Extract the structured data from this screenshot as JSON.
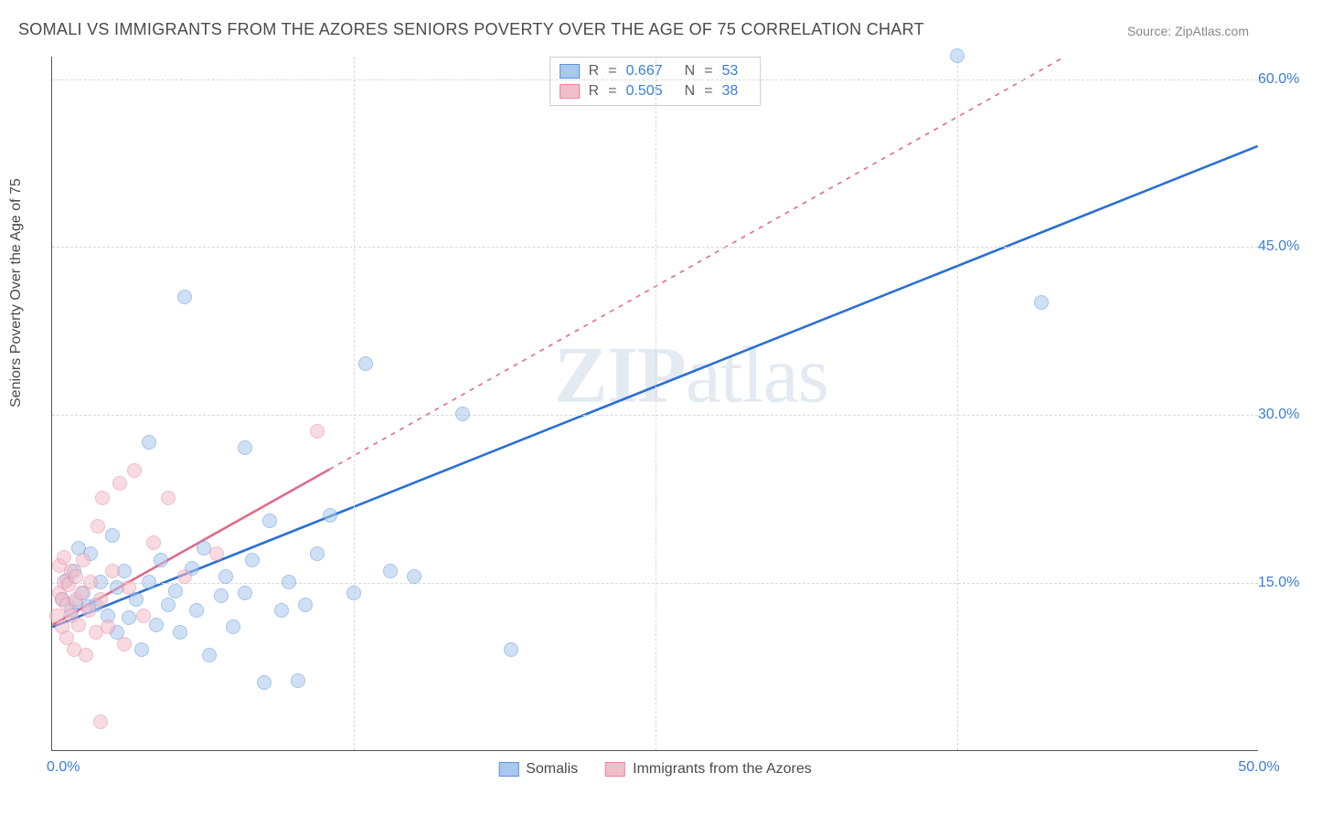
{
  "title": "SOMALI VS IMMIGRANTS FROM THE AZORES SENIORS POVERTY OVER THE AGE OF 75 CORRELATION CHART",
  "source": "Source: ZipAtlas.com",
  "watermark_left": "ZIP",
  "watermark_right": "atlas",
  "chart": {
    "type": "scatter",
    "y_axis_title": "Seniors Poverty Over the Age of 75",
    "xlim": [
      0,
      50
    ],
    "ylim": [
      0,
      62
    ],
    "x_ticks": [
      0,
      50
    ],
    "x_tick_labels": [
      "0.0%",
      "50.0%"
    ],
    "x_grid": [
      12.5,
      25,
      37.5
    ],
    "y_ticks": [
      15,
      30,
      45,
      60
    ],
    "y_tick_labels": [
      "15.0%",
      "30.0%",
      "45.0%",
      "60.0%"
    ],
    "background_color": "#ffffff",
    "grid_color": "#d8d8d8",
    "tick_label_color": "#3b7dd8",
    "title_color": "#4a4a4a",
    "title_fontsize": 18,
    "axis_fontsize": 16,
    "marker_radius": 8,
    "marker_opacity": 0.55,
    "series": [
      {
        "name": "Somalis",
        "fill": "#a9c8ee",
        "stroke": "#5a94dd",
        "line_color": "#2a6fd6",
        "line_width": 2.6,
        "line_dash": "none",
        "r_value": "0.667",
        "n_value": "53",
        "trend": {
          "x0": 0,
          "y0": 11,
          "x1": 50,
          "y1": 54
        },
        "points": [
          [
            0.4,
            13.5
          ],
          [
            0.6,
            15.2
          ],
          [
            0.8,
            12.5
          ],
          [
            0.9,
            16.0
          ],
          [
            1.0,
            13.2
          ],
          [
            1.1,
            18.0
          ],
          [
            1.3,
            14.0
          ],
          [
            1.5,
            12.8
          ],
          [
            1.6,
            17.5
          ],
          [
            1.8,
            13.0
          ],
          [
            2.0,
            15.0
          ],
          [
            2.3,
            12.0
          ],
          [
            2.5,
            19.2
          ],
          [
            2.7,
            14.5
          ],
          [
            2.7,
            10.5
          ],
          [
            3.0,
            16.0
          ],
          [
            3.2,
            11.8
          ],
          [
            3.5,
            13.5
          ],
          [
            3.7,
            9.0
          ],
          [
            4.0,
            27.5
          ],
          [
            4.0,
            15.0
          ],
          [
            4.3,
            11.2
          ],
          [
            4.5,
            17.0
          ],
          [
            4.8,
            13.0
          ],
          [
            5.1,
            14.2
          ],
          [
            5.3,
            10.5
          ],
          [
            5.5,
            40.5
          ],
          [
            5.8,
            16.2
          ],
          [
            6.0,
            12.5
          ],
          [
            6.3,
            18.0
          ],
          [
            6.5,
            8.5
          ],
          [
            7.0,
            13.8
          ],
          [
            7.2,
            15.5
          ],
          [
            7.5,
            11.0
          ],
          [
            8.0,
            27.0
          ],
          [
            8.0,
            14.0
          ],
          [
            8.3,
            17.0
          ],
          [
            8.8,
            6.0
          ],
          [
            9.0,
            20.5
          ],
          [
            9.5,
            12.5
          ],
          [
            9.8,
            15.0
          ],
          [
            10.2,
            6.2
          ],
          [
            10.5,
            13.0
          ],
          [
            11.0,
            17.5
          ],
          [
            11.5,
            21.0
          ],
          [
            12.5,
            14.0
          ],
          [
            13.0,
            34.5
          ],
          [
            14.0,
            16.0
          ],
          [
            15.0,
            15.5
          ],
          [
            17.0,
            30.0
          ],
          [
            19.0,
            9.0
          ],
          [
            37.5,
            62.0
          ],
          [
            41.0,
            40.0
          ]
        ]
      },
      {
        "name": "Immigrants from the Azores",
        "fill": "#f3bcc9",
        "stroke": "#e688a0",
        "line_color": "#e06a87",
        "line_width": 2.6,
        "line_dash": "5,6",
        "r_value": "0.505",
        "n_value": "38",
        "trend": {
          "x0": 0,
          "y0": 11.2,
          "x1": 42,
          "y1": 62
        },
        "trend_solid_until": 11.5,
        "points": [
          [
            0.2,
            12.0
          ],
          [
            0.3,
            14.0
          ],
          [
            0.3,
            16.5
          ],
          [
            0.4,
            11.0
          ],
          [
            0.4,
            13.5
          ],
          [
            0.5,
            15.0
          ],
          [
            0.5,
            17.2
          ],
          [
            0.6,
            10.0
          ],
          [
            0.6,
            13.0
          ],
          [
            0.7,
            14.8
          ],
          [
            0.8,
            12.0
          ],
          [
            0.8,
            16.0
          ],
          [
            0.9,
            9.0
          ],
          [
            1.0,
            13.5
          ],
          [
            1.0,
            15.5
          ],
          [
            1.1,
            11.2
          ],
          [
            1.2,
            14.0
          ],
          [
            1.3,
            17.0
          ],
          [
            1.4,
            8.5
          ],
          [
            1.5,
            12.5
          ],
          [
            1.6,
            15.0
          ],
          [
            1.8,
            10.5
          ],
          [
            1.9,
            20.0
          ],
          [
            2.0,
            13.5
          ],
          [
            2.1,
            22.5
          ],
          [
            2.3,
            11.0
          ],
          [
            2.5,
            16.0
          ],
          [
            2.8,
            23.8
          ],
          [
            3.0,
            9.5
          ],
          [
            3.2,
            14.5
          ],
          [
            3.4,
            25.0
          ],
          [
            3.8,
            12.0
          ],
          [
            4.2,
            18.5
          ],
          [
            4.8,
            22.5
          ],
          [
            5.5,
            15.5
          ],
          [
            6.8,
            17.5
          ],
          [
            2.0,
            2.5
          ],
          [
            11.0,
            28.5
          ]
        ]
      }
    ],
    "legend_top": [
      {
        "swatch_fill": "#a9c8ee",
        "swatch_stroke": "#5a94dd",
        "r_label": "R",
        "r_eq": "=",
        "r_val": "0.667",
        "n_label": "N",
        "n_eq": "=",
        "n_val": "53"
      },
      {
        "swatch_fill": "#f3bcc9",
        "swatch_stroke": "#e688a0",
        "r_label": "R",
        "r_eq": "=",
        "r_val": "0.505",
        "n_label": "N",
        "n_eq": "=",
        "n_val": "38"
      }
    ],
    "legend_bottom": [
      {
        "swatch_fill": "#a9c8ee",
        "swatch_stroke": "#5a94dd",
        "label": "Somalis"
      },
      {
        "swatch_fill": "#f3bcc9",
        "swatch_stroke": "#e688a0",
        "label": "Immigrants from the Azores"
      }
    ]
  }
}
